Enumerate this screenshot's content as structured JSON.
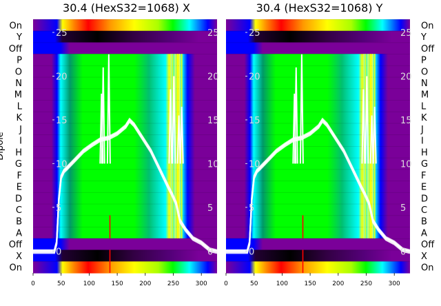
{
  "chart_data": [
    {
      "type": "heatmap",
      "title": "30.4 (HexS32=1068) X",
      "ylabel": "Dipole",
      "row_labels": [
        "On",
        "Y",
        "Off",
        "P",
        "O",
        "N",
        "M",
        "L",
        "K",
        "J",
        "I",
        "H",
        "G",
        "F",
        "E",
        "D",
        "C",
        "B",
        "A",
        "Off",
        "X",
        "On"
      ],
      "x_ticks": [
        0,
        50,
        100,
        150,
        200,
        250,
        300
      ],
      "xlim": [
        0,
        328
      ],
      "overlay_ticks": [
        0,
        5,
        10,
        15,
        20,
        25
      ],
      "overlay_ylim": [
        -2.5,
        26.5
      ],
      "overlay_line_color": "#ffffff",
      "colormap": [
        "#000000",
        "#7a0099",
        "#0000ff",
        "#00ffff",
        "#00ff00",
        "#ffff00",
        "#ff0000",
        "#ffffff"
      ],
      "overlay_curve_x": [
        0,
        20,
        38,
        42,
        46,
        50,
        55,
        60,
        75,
        90,
        105,
        120,
        135,
        150,
        165,
        172,
        180,
        195,
        210,
        225,
        240,
        248,
        255,
        262,
        272,
        285,
        300,
        315,
        328
      ],
      "overlay_curve_y": [
        0,
        0,
        0,
        1,
        6,
        8.5,
        9.2,
        9.5,
        10.5,
        11.5,
        12.2,
        12.8,
        13,
        13.5,
        14.3,
        15,
        14.5,
        13,
        11.5,
        9.5,
        7.5,
        6.5,
        5.5,
        3.5,
        2.5,
        1.5,
        1,
        0.2,
        0
      ],
      "overlay_spikes": [
        [
          122,
          18
        ],
        [
          125,
          21
        ],
        [
          135,
          22.5
        ],
        [
          245,
          18.5
        ],
        [
          251,
          20
        ],
        [
          260,
          15.5
        ],
        [
          265,
          16.5
        ]
      ]
    },
    {
      "type": "heatmap",
      "title": "30.4 (HexS32=1068) Y",
      "ylabel": "",
      "row_labels": [
        "On",
        "Y",
        "Off",
        "P",
        "O",
        "N",
        "M",
        "L",
        "K",
        "J",
        "I",
        "H",
        "G",
        "F",
        "E",
        "D",
        "C",
        "B",
        "A",
        "Off",
        "X",
        "On"
      ],
      "x_ticks": [
        0,
        50,
        100,
        150,
        200,
        250,
        300
      ],
      "xlim": [
        0,
        328
      ],
      "overlay_ticks": [
        0,
        5,
        10,
        15,
        20,
        25
      ],
      "overlay_ylim": [
        -2.5,
        26.5
      ],
      "overlay_line_color": "#ffffff",
      "colormap": [
        "#000000",
        "#7a0099",
        "#0000ff",
        "#00ffff",
        "#00ff00",
        "#ffff00",
        "#ff0000",
        "#ffffff"
      ],
      "overlay_curve_x": [
        0,
        20,
        38,
        42,
        46,
        50,
        55,
        60,
        75,
        90,
        105,
        120,
        135,
        150,
        165,
        172,
        180,
        195,
        210,
        225,
        240,
        248,
        255,
        262,
        272,
        285,
        300,
        315,
        328
      ],
      "overlay_curve_y": [
        0,
        0,
        0,
        1,
        6,
        8.5,
        9.2,
        9.5,
        10.5,
        11.5,
        12.2,
        12.8,
        13,
        13.5,
        14.3,
        15,
        14.5,
        13,
        11.5,
        9.5,
        7.5,
        6.5,
        5.5,
        3.5,
        2.5,
        1.5,
        1,
        0.2,
        0
      ],
      "overlay_spikes": [
        [
          122,
          18
        ],
        [
          125,
          21
        ],
        [
          135,
          22.5
        ],
        [
          245,
          18.5
        ],
        [
          251,
          20
        ],
        [
          260,
          15.5
        ],
        [
          265,
          16.5
        ]
      ]
    }
  ]
}
